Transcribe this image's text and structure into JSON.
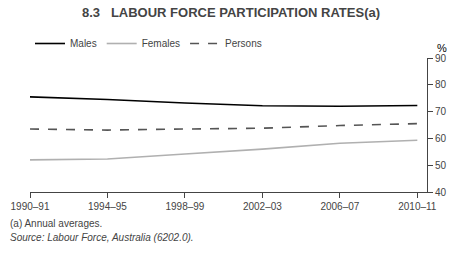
{
  "chart_data": {
    "type": "line",
    "title": "8.3   LABOUR FORCE PARTICIPATION RATES(a)",
    "ylabel": "%",
    "x": [
      1990,
      1994,
      1998,
      2002,
      2006,
      2010
    ],
    "series": [
      {
        "name": "Males",
        "color": "#000000",
        "line_style": "solid",
        "values": [
          75.5,
          74.5,
          73.2,
          72.2,
          72.0,
          72.3
        ]
      },
      {
        "name": "Females",
        "color": "#b0b0b0",
        "line_style": "solid",
        "values": [
          52.0,
          52.3,
          54.2,
          56.0,
          58.2,
          59.3
        ]
      },
      {
        "name": "Persons",
        "color": "#555555",
        "line_style": "dashed",
        "values": [
          63.5,
          63.1,
          63.5,
          63.8,
          64.8,
          65.5
        ]
      }
    ],
    "xlim": [
      1990,
      2010.5
    ],
    "xticks": [
      {
        "value": 1990,
        "label": "1990–91"
      },
      {
        "value": 1994,
        "label": "1994–95"
      },
      {
        "value": 1998,
        "label": "1998–99"
      },
      {
        "value": 2002,
        "label": "2002–03"
      },
      {
        "value": 2006,
        "label": "2006–07"
      },
      {
        "value": 2010,
        "label": "2010–11"
      }
    ],
    "ylim": [
      40,
      90
    ],
    "yticks": [
      40,
      50,
      60,
      70,
      80,
      90
    ],
    "grid": false,
    "legend": "upper left",
    "annotations": [
      "(a) Annual averages.",
      "Source: Labour Force, Australia (6202.0)."
    ]
  }
}
